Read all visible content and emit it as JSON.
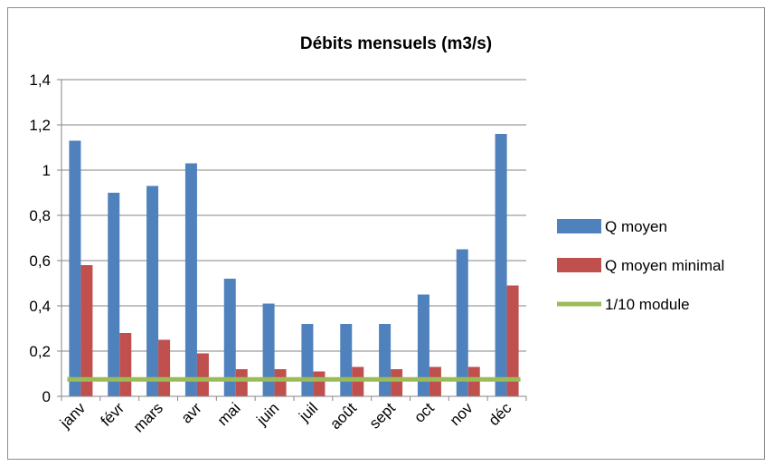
{
  "chart_data": {
    "type": "bar",
    "title": "Débits mensuels (m3/s)",
    "xlabel": "",
    "ylabel": "",
    "categories": [
      "janv",
      "févr",
      "mars",
      "avr",
      "mai",
      "juin",
      "juil",
      "août",
      "sept",
      "oct",
      "nov",
      "déc"
    ],
    "y_ticks": [
      "0",
      "0,2",
      "0,4",
      "0,6",
      "0,8",
      "1",
      "1,2",
      "1,4"
    ],
    "ylim": [
      0,
      1.4
    ],
    "grid": true,
    "legend_position": "right",
    "series": [
      {
        "name": "Q moyen",
        "kind": "bar",
        "color": "#4f81bd",
        "values": [
          1.13,
          0.9,
          0.93,
          1.03,
          0.52,
          0.41,
          0.32,
          0.32,
          0.32,
          0.45,
          0.65,
          1.16
        ]
      },
      {
        "name": "Q moyen minimal",
        "kind": "bar",
        "color": "#c0504d",
        "values": [
          0.58,
          0.28,
          0.25,
          0.19,
          0.12,
          0.12,
          0.11,
          0.13,
          0.12,
          0.13,
          0.13,
          0.49
        ]
      },
      {
        "name": "1/10 module",
        "kind": "line",
        "color": "#9bbb59",
        "values": [
          0.075,
          0.075,
          0.075,
          0.075,
          0.075,
          0.075,
          0.075,
          0.075,
          0.075,
          0.075,
          0.075,
          0.075
        ]
      }
    ]
  }
}
